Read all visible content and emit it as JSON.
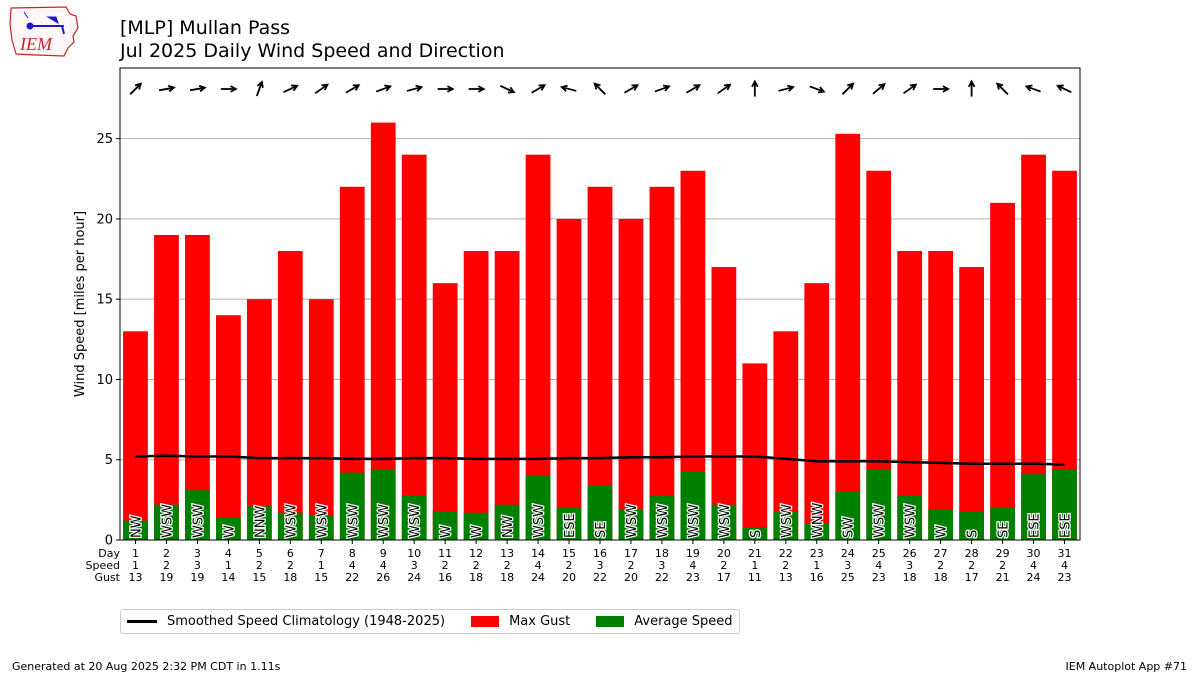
{
  "title": "[MLP] Mullan Pass",
  "subtitle": "Jul 2025 Daily Wind Speed and Direction",
  "logo": {
    "text": "IEM",
    "icon": "iowa-state-outline-with-wind-barb",
    "color": "#cc2222"
  },
  "footer": {
    "generated": "Generated at 20 Aug 2025 2:32 PM CDT in 1.11s",
    "app": "IEM Autoplot App #71"
  },
  "legend": [
    {
      "label": "Smoothed Speed Climatology (1948-2025)",
      "kind": "line",
      "color": "#000000"
    },
    {
      "label": "Max Gust",
      "kind": "box",
      "color": "#ff0000"
    },
    {
      "label": "Average Speed",
      "kind": "box",
      "color": "#008000"
    }
  ],
  "chart_data": {
    "type": "bar",
    "ylabel": "Wind Speed [miles per hour]",
    "ylim": [
      0,
      29.4
    ],
    "yticks": [
      0,
      5,
      10,
      15,
      20,
      25
    ],
    "grid": "horizontal",
    "legend_position": "below-left",
    "row_labels": [
      "Day",
      "Speed",
      "Gust"
    ],
    "days": [
      1,
      2,
      3,
      4,
      5,
      6,
      7,
      8,
      9,
      10,
      11,
      12,
      13,
      14,
      15,
      16,
      17,
      18,
      19,
      20,
      21,
      22,
      23,
      24,
      25,
      26,
      27,
      28,
      29,
      30,
      31
    ],
    "avg_speed_labels": [
      1,
      2,
      3,
      1,
      2,
      2,
      1,
      4,
      4,
      3,
      2,
      2,
      2,
      4,
      2,
      3,
      2,
      3,
      4,
      2,
      1,
      2,
      1,
      3,
      4,
      3,
      2,
      2,
      2,
      4,
      4
    ],
    "gust_labels": [
      13,
      19,
      19,
      14,
      15,
      18,
      15,
      22,
      26,
      24,
      16,
      18,
      18,
      24,
      20,
      22,
      20,
      22,
      23,
      17,
      11,
      13,
      16,
      25,
      23,
      18,
      18,
      17,
      21,
      24,
      23
    ],
    "series": [
      {
        "name": "Max Gust",
        "color": "#ff0000",
        "values": [
          13,
          19,
          19,
          14,
          15,
          18,
          15,
          22,
          26,
          24,
          16,
          18,
          18,
          24,
          20,
          22,
          20,
          22,
          23,
          17,
          11,
          13,
          16,
          25.3,
          23,
          18,
          18,
          17,
          21,
          24,
          23
        ]
      },
      {
        "name": "Average Speed",
        "color": "#008000",
        "values": [
          1.2,
          2.2,
          3.1,
          1.4,
          2.1,
          1.7,
          1.5,
          4.2,
          4.4,
          2.8,
          1.8,
          1.7,
          2.2,
          4.0,
          2.0,
          3.4,
          1.9,
          2.8,
          4.3,
          2.2,
          0.8,
          1.8,
          1.0,
          3.0,
          4.4,
          2.8,
          1.9,
          1.8,
          2.0,
          4.1,
          4.4
        ]
      },
      {
        "name": "Smoothed Speed Climatology (1948-2025)",
        "color": "#000000",
        "type": "line",
        "values": [
          5.2,
          5.25,
          5.2,
          5.2,
          5.1,
          5.1,
          5.1,
          5.05,
          5.05,
          5.1,
          5.1,
          5.05,
          5.05,
          5.05,
          5.1,
          5.1,
          5.15,
          5.15,
          5.2,
          5.2,
          5.2,
          5.05,
          4.9,
          4.9,
          4.9,
          4.85,
          4.8,
          4.75,
          4.75,
          4.75,
          4.7
        ]
      }
    ],
    "directions": [
      "NW",
      "WSW",
      "WSW",
      "W",
      "NNW",
      "WSW",
      "WSW",
      "WSW",
      "WSW",
      "WSW",
      "W",
      "W",
      "NW",
      "WSW",
      "ESE",
      "SE",
      "WSW",
      "WSW",
      "WSW",
      "WSW",
      "S",
      "WSW",
      "WNW",
      "SW",
      "WSW",
      "WSW",
      "W",
      "S",
      "SE",
      "ESE",
      "ESE"
    ],
    "arrow_angles": [
      225,
      260,
      260,
      270,
      200,
      245,
      235,
      240,
      250,
      255,
      270,
      270,
      295,
      240,
      105,
      135,
      240,
      250,
      240,
      235,
      180,
      255,
      290,
      225,
      230,
      235,
      270,
      180,
      135,
      110,
      115
    ]
  }
}
